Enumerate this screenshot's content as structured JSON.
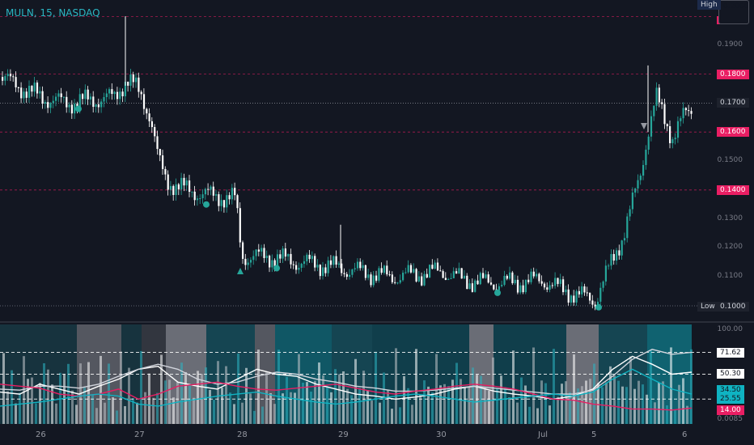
{
  "symbol": {
    "title": "MULN, 15, NASDAQ"
  },
  "price_axis": {
    "high_label": "High",
    "high_value": "0.2000",
    "low_label": "Low",
    "low_value": "0.1000",
    "ticks": [
      "0.1900",
      "0.1800",
      "0.1700",
      "0.1600",
      "0.1500",
      "0.1400",
      "0.1300",
      "0.1200",
      "0.1100"
    ],
    "highlighted": [
      {
        "value": "0.1800",
        "style": "pink"
      },
      {
        "value": "0.1700",
        "style": "dark"
      },
      {
        "value": "0.1600",
        "style": "pink"
      },
      {
        "value": "0.1400",
        "style": "pink"
      }
    ]
  },
  "indicator_axis": {
    "top": "100.00",
    "bottom": "0.0085",
    "tags": [
      {
        "value": "71.62",
        "style": "white"
      },
      {
        "value": "50.30",
        "style": "white"
      },
      {
        "value": "34.50",
        "style": "cyan"
      },
      {
        "value": "25.55",
        "style": "cyan"
      },
      {
        "value": "14.00",
        "style": "pink"
      }
    ]
  },
  "time_axis": {
    "labels": [
      "26",
      "27",
      "28",
      "29",
      "30",
      "Jul",
      "5",
      "6"
    ]
  },
  "colors": {
    "background": "#131722",
    "up": "#26a69a",
    "down": "#ffffff",
    "accent_cyan": "#0fb3c2",
    "accent_pink": "#e91e63",
    "grid_dashed": "#e91e63"
  },
  "chart_data": {
    "type": "candlestick",
    "price_range": [
      0.0985,
      0.2005
    ],
    "indicator_range": [
      0,
      100
    ],
    "price_path": [
      [
        0,
        0.179
      ],
      [
        20,
        0.176
      ],
      [
        50,
        0.172
      ],
      [
        80,
        0.17
      ],
      [
        110,
        0.171
      ],
      [
        140,
        0.172
      ],
      [
        155,
        0.178
      ],
      [
        165,
        0.176
      ],
      [
        175,
        0.172
      ],
      [
        185,
        0.165
      ],
      [
        195,
        0.15
      ],
      [
        205,
        0.143
      ],
      [
        230,
        0.14
      ],
      [
        260,
        0.138
      ],
      [
        290,
        0.137
      ],
      [
        298,
        0.117
      ],
      [
        330,
        0.117
      ],
      [
        370,
        0.115
      ],
      [
        400,
        0.114
      ],
      [
        420,
        0.113
      ],
      [
        440,
        0.112
      ],
      [
        480,
        0.11
      ],
      [
        520,
        0.111
      ],
      [
        545,
        0.112
      ],
      [
        570,
        0.109
      ],
      [
        600,
        0.108
      ],
      [
        640,
        0.108
      ],
      [
        670,
        0.109
      ],
      [
        690,
        0.106
      ],
      [
        710,
        0.104
      ],
      [
        735,
        0.102
      ],
      [
        750,
        0.112
      ],
      [
        770,
        0.125
      ],
      [
        790,
        0.145
      ],
      [
        800,
        0.16
      ],
      [
        810,
        0.172
      ],
      [
        820,
        0.165
      ],
      [
        830,
        0.158
      ],
      [
        845,
        0.166
      ],
      [
        855,
        0.168
      ]
    ],
    "markers": [
      {
        "x": 97,
        "price": 0.168,
        "kind": "circle"
      },
      {
        "x": 255,
        "price": 0.135,
        "kind": "circle"
      },
      {
        "x": 342,
        "price": 0.113,
        "kind": "circle"
      },
      {
        "x": 615,
        "price": 0.1045,
        "kind": "circle"
      },
      {
        "x": 740,
        "price": 0.0995,
        "kind": "circle"
      },
      {
        "x": 297,
        "price": 0.112,
        "kind": "triangle"
      },
      {
        "x": 796,
        "price": 0.162,
        "kind": "triangle-down"
      }
    ],
    "indicator_lines": [
      {
        "name": "fast",
        "color": "#ffffff",
        "values": [
          32,
          30,
          40,
          35,
          30,
          38,
          45,
          55,
          58,
          42,
          38,
          35,
          45,
          55,
          50,
          48,
          40,
          35,
          30,
          28,
          25,
          27,
          30,
          35,
          38,
          33,
          30,
          28,
          25,
          28,
          35,
          55,
          68,
          60,
          50,
          52
        ]
      },
      {
        "name": "slow",
        "color": "#d1d4dc",
        "values": [
          35,
          34,
          38,
          38,
          36,
          40,
          48,
          55,
          60,
          55,
          45,
          40,
          42,
          48,
          52,
          50,
          45,
          42,
          38,
          36,
          33,
          33,
          34,
          36,
          38,
          36,
          34,
          32,
          30,
          30,
          34,
          48,
          65,
          75,
          70,
          72
        ]
      },
      {
        "name": "pink",
        "color": "#e91e63",
        "values": [
          40,
          38,
          36,
          30,
          28,
          30,
          35,
          25,
          30,
          38,
          40,
          42,
          38,
          35,
          34,
          36,
          38,
          40,
          36,
          32,
          30,
          33,
          35,
          38,
          40,
          38,
          35,
          30,
          25,
          24,
          20,
          18,
          15,
          15,
          14,
          16
        ]
      },
      {
        "name": "cyan",
        "color": "#0fb3c2",
        "values": [
          18,
          20,
          22,
          25,
          28,
          30,
          28,
          20,
          18,
          22,
          25,
          28,
          30,
          32,
          28,
          25,
          22,
          20,
          22,
          25,
          28,
          30,
          28,
          25,
          22,
          24,
          26,
          28,
          30,
          28,
          32,
          45,
          55,
          45,
          35,
          30
        ]
      }
    ]
  }
}
